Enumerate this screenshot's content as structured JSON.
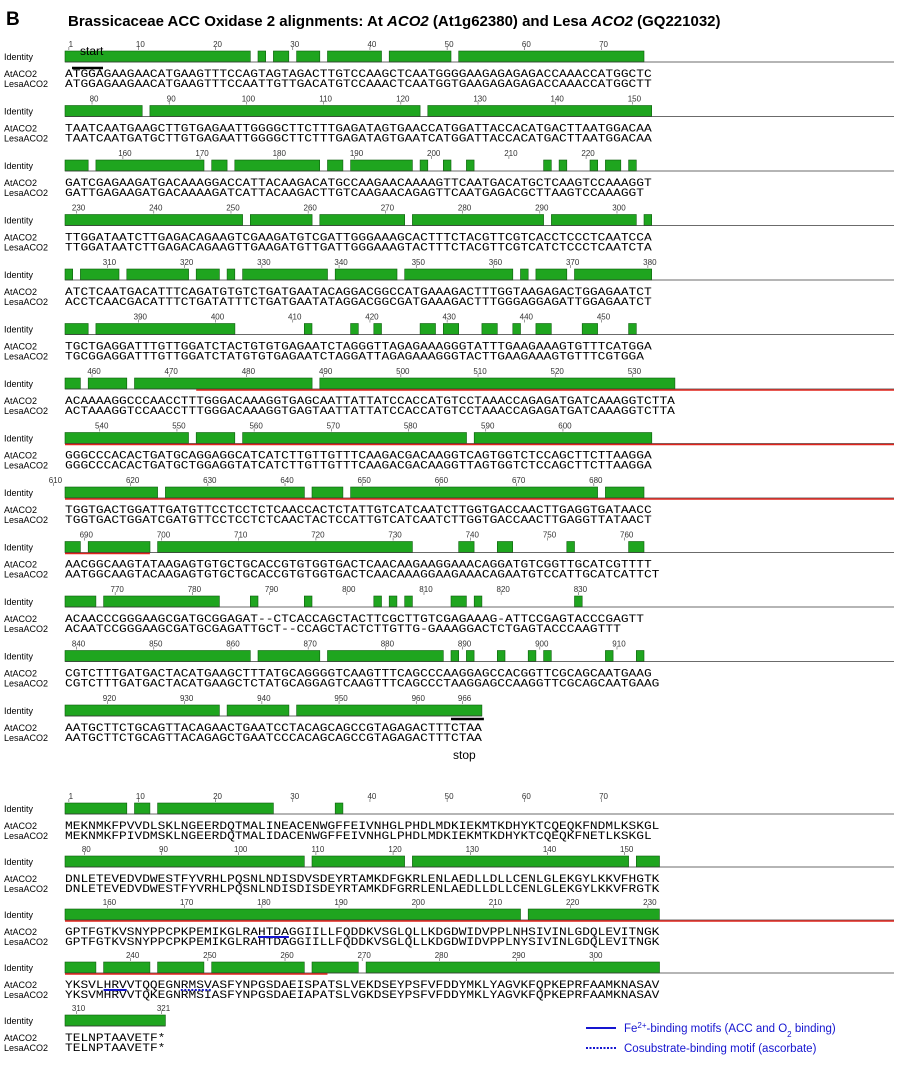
{
  "panel_letter": "B",
  "title_segments": [
    {
      "text": "Brassicaceae ACC Oxidase 2 alignments: At ",
      "italic": false
    },
    {
      "text": "ACO2",
      "italic": true
    },
    {
      "text": " (At1g62380) and Lesa ",
      "italic": false
    },
    {
      "text": "ACO2",
      "italic": true
    },
    {
      "text": " (GQ221032)",
      "italic": false
    }
  ],
  "row_labels": {
    "identity": "Identity",
    "seq1": "AtACO2",
    "seq2": "LesaACO2"
  },
  "colors": {
    "identity_bar": "#1fa51f",
    "identity_edge": "#0d5d0d",
    "domain_underline": "#e0241c",
    "motif": "#1515d0",
    "start_stop": "#000000"
  },
  "nucleotide_alignment": {
    "total_length": 966,
    "blocks": [
      {
        "ticks": [
          1,
          10,
          20,
          30,
          40,
          50,
          60,
          70
        ],
        "seq1": "ATGGAGAAGAACATGAAGTTTCCAGTAGTAGACTTGTCCAAGCTCAATGGGGAAGAGAGAGACCAAACCATGGCTC",
        "seq2": "ATGGAGAAGAACATGAAGTTTCCAATTGTTGACATGTCCAAACTCAATGGTGAAGAGAGAGACCAAACCATGGCTT"
      },
      {
        "ticks": [
          80,
          90,
          100,
          110,
          120,
          130,
          140,
          150
        ],
        "seq1": "TAATCAATGAAGCTTGTGAGAATTGGGGCTTCTTTGAGATAGTGAACCATGGATTACCACATGACTTAATGGACAA",
        "seq2": "TAATCAATGATGCTTGTGAGAATTGGGGCTTCTTTGAGATAGTGAATCATGGATTACCACATGACTTAATGGACAA"
      },
      {
        "ticks": [
          160,
          170,
          180,
          190,
          200,
          210,
          220
        ],
        "seq1": "GATCGAGAAGATGACAAAGGACCATTACAAGACATGCCAAGAACAAAAGTTCAATGACATGCTCAAGTCCAAAGGT",
        "seq2": "GATTGAGAAGATGACAAAAGATCATTACAAGACTTGTCAAGAACAGAGTTCAATGAGACGCTTAAGTCCAAAGGT"
      },
      {
        "ticks": [
          230,
          240,
          250,
          260,
          270,
          280,
          290,
          300
        ],
        "seq1": "TTGGATAATCTTGAGACAGAAGTCGAAGATGTCGATTGGGAAAGCACTTTCTACGTTCGTCACCTCCCTCAATCCA",
        "seq2": "TTGGATAATCTTGAGACAGAAGTTGAAGATGTTGATTGGGAAAGTACTTTCTACGTTCGTCATCTCCCTCAATCTA"
      },
      {
        "ticks": [
          310,
          320,
          330,
          340,
          350,
          360,
          370,
          380
        ],
        "seq1": "ATCTCAATGACATTTCAGATGTGTCTGATGAATACAGGACGGCCATGAAAGACTTTGGTAAGAGACTGGAGAATCT",
        "seq2": "ACCTCAACGACATTTCTGATATTTCTGATGAATATAGGACGGCGATGAAAGACTTTGGGAGGAGATTGGAGAATCT"
      },
      {
        "ticks": [
          390,
          400,
          410,
          420,
          430,
          440,
          450
        ],
        "seq1": "TGCTGAGGATTTGTTGGATCTACTGTGTGAGAATCTAGGGTTAGAGAAAGGGTATTTGAAGAAAGTGTTTCATGGA",
        "seq2": "TGCGGAGGATTTGTTGGATCTATGTGTGAGAATCTAGGATTAGAGAAAGGGTACTTGAAGAAAGTGTTTCGTGGA"
      },
      {
        "ticks": [
          460,
          470,
          480,
          490,
          500,
          510,
          520,
          530
        ],
        "seq1": "ACAAAAGGCCCAACCTTTGGGACAAAGGTGAGCAATTATTATCCACCATGTCCTAAACCAGAGATGATCAAAGGTCTTA",
        "seq2": "ACTAAAGGTCCAACCTTTGGGACAAAGGTGAGTAATTATTATCCACCATGTCCTAAACCAGAGATGATCAAAGGTCTTA"
      },
      {
        "ticks": [
          540,
          550,
          560,
          570,
          580,
          590,
          600
        ],
        "seq1": "GGGCCCACACTGATGCAGGAGGCATCATCTTGTTGTTTCAAGACGACAAGGTCAGTGGTCTCCAGCTTCTTAAGGA",
        "seq2": "GGGCCCACACTGATGCTGGAGGTATCATCTTGTTGTTTCAAGACGACAAGGTTAGTGGTCTCCAGCTTCTTAAGGA"
      },
      {
        "ticks": [
          610,
          620,
          630,
          640,
          650,
          660,
          670,
          680
        ],
        "seq1": "TGGTGACTGGATTGATGTTCCTCCTCTCAACCACTCTATTGTCATCAATCTTGGTGACCAACTTGAGGTGATAACC",
        "seq2": "TGGTGACTGGATCGATGTTCCTCCTCTCAACTACTCCATTGTCATCAATCTTGGTGACCAACTTGAGGTTATAACT"
      },
      {
        "ticks": [
          690,
          700,
          710,
          720,
          730,
          740,
          750,
          760
        ],
        "seq1": "AACGGCAAGTATAAGAGTGTGCTGCACCGTGTGGTGACTCAACAAGAAGGAAACAGGATGTCGGTTGCATCGTTTT",
        "seq2": "AATGGCAAGTACAAGAGTGTGCTGCACCGTGTGGTGACTCAACAAAGGAAGAAACAGAATGTCCATTGCATCATTCT"
      },
      {
        "ticks": [
          770,
          780,
          790,
          800,
          810,
          820,
          830
        ],
        "seq1": "ACAACCCGGGAAGCGATGCGGAGAT--CTCACCAGCTACTTCGCTTGTCGAGAAAG-ATTCCGAGTACCCGAGTT",
        "seq2": "ACAATCCGGGAAGCGATGCGAGATTGCT--CCAGCTACTCTTGTTG-GAAAGGACTCTGAGTACCCAAGTTT"
      },
      {
        "ticks": [
          840,
          850,
          860,
          870,
          880,
          890,
          900,
          910
        ],
        "seq1": "CGTCTTTGATGACTACATGAAGCTTTATGCAGGGGTCAAGTTTCAGCCCAAGGAGCCACGGTTCGCAGCAATGAAG",
        "seq2": "CGTCTTTGATGACTACATGAAGCTCTATGCAGGAGTCAAGTTTCAGCCCTAAGGAGCCAAGGTTCGCAGCAATGAAG"
      },
      {
        "ticks": [
          920,
          930,
          940,
          950,
          960,
          966
        ],
        "seq1": "AATGCTTCTGCAGTTACAGAACTGAATCCTACAGCAGCCGTAGAGACTTTCTAA",
        "seq2": "AATGCTTCTGCAGTTACAGAGCTGAATCCCACAGCAGCCGTAGAGACTTTCTAA"
      }
    ],
    "start_label": "start",
    "stop_label": "stop"
  },
  "protein_alignment": {
    "total_length": 321,
    "blocks": [
      {
        "ticks": [
          1,
          10,
          20,
          30,
          40,
          50,
          60,
          70
        ],
        "seq1": "MEKNMKFPVVDLSKLNGEERDQTMALINEACENWGFFEIVNHGLPHDLMDKIEKMTKDHYKTCQEQKFNDMLKSKGL",
        "seq2": "MEKNMKFPIVDMSKLNGEERDQTMALIDACENWGFFEIVNHGLPHDLMDKIEKMTKDHYKTCQEQKFNETLKSKGL"
      },
      {
        "ticks": [
          80,
          90,
          100,
          110,
          120,
          130,
          140,
          150
        ],
        "seq1": "DNLETEVEDVDWESTFYVRHLPQSNLNDISDVSDEYRTAMKDFGKRLENLAEDLLDLLCENLGLEKGYLKKVFHGTK",
        "seq2": "DNLETEVEDVDWESTFYVRHLPQSNLNDISDISDEYRTAMKDFGRRLENLAEDLLDLLCENLGLEKGYLKKVFRGTK"
      },
      {
        "ticks": [
          160,
          170,
          180,
          190,
          200,
          210,
          220,
          230
        ],
        "seq1": "GPTFGTKVSNYPPCPKPEMIKGLRAHTDAGGIILLFQDDKVSGLQLLKDGDWIDVPPLNHSIVINLGDQLEVITNGK",
        "seq2": "GPTFGTKVSNYPPCPKPEMIKGLRAHTDAGGIILLFQDDKVSGLQLLKDGDWIDVPPLNYSIVINLGDQLEVITNGK"
      },
      {
        "ticks": [
          240,
          250,
          260,
          270,
          280,
          290,
          300
        ],
        "seq1": "YKSVLHRVVTQQEGNRMSVASFYNPGSDAEISPATSLVEKDSEYPSFVFDDYMKLYAGVKFQPKEPRFAAMKNASAV",
        "seq2": "YKSVMHRVVTQKEGNRMSIASFYNPGSDAEIAPATSLVGKDSEYPSFVFDDYMKLYAGVKFQPKEPRFAAMKNASAV"
      },
      {
        "ticks": [
          310,
          321
        ],
        "seq1": "TELNPTAAVETF*",
        "seq2": "TELNPTAAVETF*"
      }
    ]
  },
  "legend": {
    "solid_text": "Fe2+-binding motifs (ACC and O2 binding)",
    "dotted_text": "Cosubstrate-binding motif (ascorbate)"
  }
}
